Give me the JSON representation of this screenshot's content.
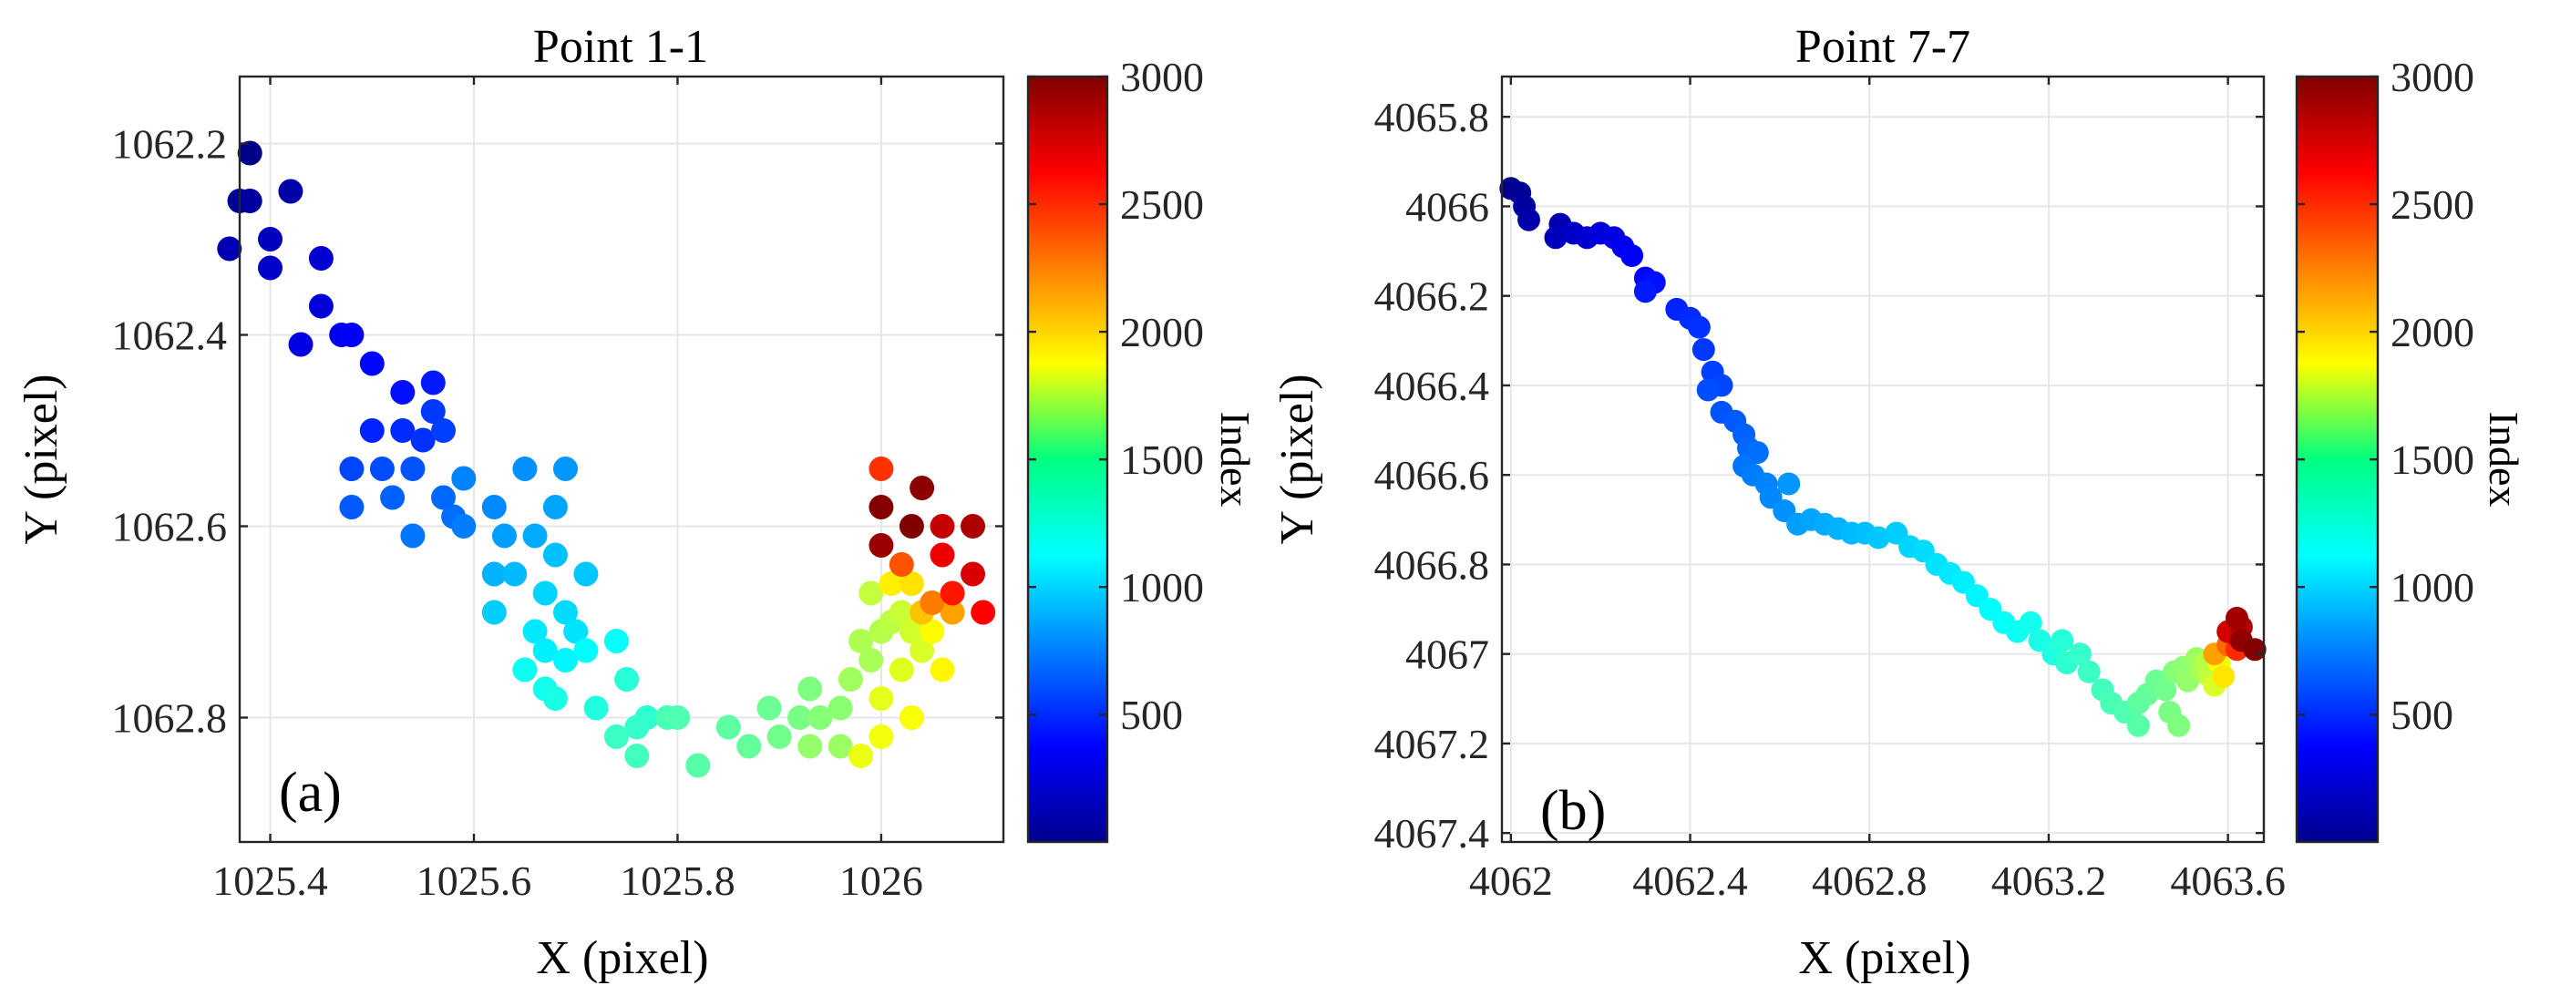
{
  "chart_data": [
    {
      "type": "scatter",
      "title": "Point 1-1",
      "panel_label": "(a)",
      "xlabel": "X (pixel)",
      "ylabel": "Y (pixel)",
      "xlim": [
        1025.37,
        1026.12
      ],
      "ylim": [
        1062.13,
        1062.93
      ],
      "y_reversed": true,
      "xticks": [
        1025.4,
        1025.6,
        1025.8,
        1026.0
      ],
      "xtick_labels": [
        "1025.4",
        "1025.6",
        "1025.8",
        "1026"
      ],
      "yticks": [
        1062.2,
        1062.4,
        1062.6,
        1062.8
      ],
      "ytick_labels": [
        "1062.2",
        "1062.4",
        "1062.6",
        "1062.8"
      ],
      "grid": true,
      "colorbar": {
        "label": "Index",
        "colormap": "jet",
        "range": [
          1,
          3000
        ],
        "ticks": [
          500,
          1000,
          1500,
          2000,
          2500,
          3000
        ],
        "tick_labels": [
          "500",
          "1000",
          "1500",
          "2000",
          "2500",
          "3000"
        ]
      },
      "points": [
        [
          1025.38,
          1062.21,
          30
        ],
        [
          1025.37,
          1062.26,
          60
        ],
        [
          1025.38,
          1062.26,
          90
        ],
        [
          1025.42,
          1062.25,
          120
        ],
        [
          1025.36,
          1062.31,
          150
        ],
        [
          1025.4,
          1062.3,
          180
        ],
        [
          1025.4,
          1062.33,
          210
        ],
        [
          1025.45,
          1062.32,
          240
        ],
        [
          1025.45,
          1062.37,
          270
        ],
        [
          1025.43,
          1062.41,
          300
        ],
        [
          1025.47,
          1062.4,
          330
        ],
        [
          1025.48,
          1062.4,
          360
        ],
        [
          1025.5,
          1062.43,
          390
        ],
        [
          1025.53,
          1062.46,
          420
        ],
        [
          1025.56,
          1062.45,
          450
        ],
        [
          1025.5,
          1062.5,
          480
        ],
        [
          1025.53,
          1062.5,
          500
        ],
        [
          1025.55,
          1062.51,
          520
        ],
        [
          1025.56,
          1062.48,
          540
        ],
        [
          1025.57,
          1062.5,
          560
        ],
        [
          1025.48,
          1062.54,
          580
        ],
        [
          1025.51,
          1062.54,
          600
        ],
        [
          1025.54,
          1062.54,
          620
        ],
        [
          1025.48,
          1062.58,
          640
        ],
        [
          1025.52,
          1062.57,
          660
        ],
        [
          1025.57,
          1062.57,
          680
        ],
        [
          1025.58,
          1062.59,
          700
        ],
        [
          1025.54,
          1062.61,
          720
        ],
        [
          1025.59,
          1062.6,
          740
        ],
        [
          1025.59,
          1062.55,
          760
        ],
        [
          1025.62,
          1062.58,
          780
        ],
        [
          1025.65,
          1062.54,
          800
        ],
        [
          1025.69,
          1062.54,
          820
        ],
        [
          1025.63,
          1062.61,
          840
        ],
        [
          1025.68,
          1062.58,
          860
        ],
        [
          1025.66,
          1062.61,
          880
        ],
        [
          1025.62,
          1062.65,
          900
        ],
        [
          1025.64,
          1062.65,
          920
        ],
        [
          1025.68,
          1062.63,
          940
        ],
        [
          1025.71,
          1062.65,
          960
        ],
        [
          1025.62,
          1062.69,
          980
        ],
        [
          1025.67,
          1062.67,
          1000
        ],
        [
          1025.69,
          1062.69,
          1020
        ],
        [
          1025.7,
          1062.71,
          1040
        ],
        [
          1025.66,
          1062.71,
          1060
        ],
        [
          1025.67,
          1062.73,
          1080
        ],
        [
          1025.69,
          1062.74,
          1100
        ],
        [
          1025.71,
          1062.73,
          1120
        ],
        [
          1025.74,
          1062.72,
          1140
        ],
        [
          1025.65,
          1062.75,
          1160
        ],
        [
          1025.67,
          1062.77,
          1180
        ],
        [
          1025.68,
          1062.78,
          1200
        ],
        [
          1025.72,
          1062.79,
          1220
        ],
        [
          1025.75,
          1062.76,
          1240
        ],
        [
          1025.77,
          1062.8,
          1260
        ],
        [
          1025.76,
          1062.81,
          1280
        ],
        [
          1025.74,
          1062.82,
          1300
        ],
        [
          1025.76,
          1062.84,
          1320
        ],
        [
          1025.79,
          1062.8,
          1340
        ],
        [
          1025.8,
          1062.8,
          1360
        ],
        [
          1025.82,
          1062.85,
          1380
        ],
        [
          1025.85,
          1062.81,
          1400
        ],
        [
          1025.87,
          1062.83,
          1420
        ],
        [
          1025.89,
          1062.79,
          1440
        ],
        [
          1025.9,
          1062.82,
          1460
        ],
        [
          1025.92,
          1062.8,
          1480
        ],
        [
          1025.93,
          1062.77,
          1500
        ],
        [
          1025.94,
          1062.8,
          1520
        ],
        [
          1025.96,
          1062.79,
          1540
        ],
        [
          1025.93,
          1062.83,
          1560
        ],
        [
          1025.96,
          1062.83,
          1580
        ],
        [
          1025.97,
          1062.76,
          1600
        ],
        [
          1025.99,
          1062.74,
          1620
        ],
        [
          1025.98,
          1062.72,
          1640
        ],
        [
          1026.0,
          1062.71,
          1660
        ],
        [
          1026.01,
          1062.7,
          1680
        ],
        [
          1025.99,
          1062.67,
          1700
        ],
        [
          1026.02,
          1062.69,
          1720
        ],
        [
          1026.03,
          1062.71,
          1740
        ],
        [
          1026.04,
          1062.73,
          1760
        ],
        [
          1026.02,
          1062.75,
          1780
        ],
        [
          1026.0,
          1062.78,
          1800
        ],
        [
          1025.98,
          1062.84,
          1820
        ],
        [
          1026.0,
          1062.82,
          1840
        ],
        [
          1026.03,
          1062.8,
          1860
        ],
        [
          1026.05,
          1062.71,
          1880
        ],
        [
          1026.06,
          1062.75,
          1900
        ],
        [
          1026.01,
          1062.66,
          1920
        ],
        [
          1026.03,
          1062.66,
          1960
        ],
        [
          1026.04,
          1062.69,
          2050
        ],
        [
          1026.07,
          1062.69,
          2150
        ],
        [
          1026.05,
          1062.68,
          2260
        ],
        [
          1026.02,
          1062.64,
          2380
        ],
        [
          1026.0,
          1062.54,
          2480
        ],
        [
          1026.07,
          1062.67,
          2560
        ],
        [
          1026.1,
          1062.69,
          2620
        ],
        [
          1026.06,
          1062.63,
          2680
        ],
        [
          1026.09,
          1062.65,
          2740
        ],
        [
          1026.06,
          1062.6,
          2800
        ],
        [
          1026.09,
          1062.6,
          2860
        ],
        [
          1026.0,
          1062.62,
          2920
        ],
        [
          1026.04,
          1062.56,
          2960
        ],
        [
          1026.0,
          1062.58,
          2980
        ],
        [
          1026.03,
          1062.6,
          2995
        ]
      ]
    },
    {
      "type": "scatter",
      "title": "Point 7-7",
      "panel_label": "(b)",
      "xlabel": "X (pixel)",
      "ylabel": "Y (pixel)",
      "xlim": [
        4061.98,
        4063.68
      ],
      "ylim": [
        4065.71,
        4067.42
      ],
      "y_reversed": true,
      "xticks": [
        4062.0,
        4062.4,
        4062.8,
        4063.2,
        4063.6
      ],
      "xtick_labels": [
        "4062",
        "4062.4",
        "4062.8",
        "4063.2",
        "4063.6"
      ],
      "yticks": [
        4065.8,
        4066.0,
        4066.2,
        4066.4,
        4066.6,
        4066.8,
        4067.0,
        4067.2,
        4067.4
      ],
      "ytick_labels": [
        "4065.8",
        "4066",
        "4066.2",
        "4066.4",
        "4066.6",
        "4066.8",
        "4067",
        "4067.2",
        "4067.4"
      ],
      "grid": true,
      "colorbar": {
        "label": "Index",
        "colormap": "jet",
        "range": [
          1,
          3000
        ],
        "ticks": [
          500,
          1000,
          1500,
          2000,
          2500,
          3000
        ],
        "tick_labels": [
          "500",
          "1000",
          "1500",
          "2000",
          "2500",
          "3000"
        ]
      },
      "points": [
        [
          4062.0,
          4065.96,
          30
        ],
        [
          4062.02,
          4065.97,
          60
        ],
        [
          4062.03,
          4066.0,
          90
        ],
        [
          4062.04,
          4066.03,
          120
        ],
        [
          4062.11,
          4066.04,
          150
        ],
        [
          4062.1,
          4066.07,
          180
        ],
        [
          4062.14,
          4066.06,
          210
        ],
        [
          4062.17,
          4066.07,
          240
        ],
        [
          4062.2,
          4066.06,
          270
        ],
        [
          4062.23,
          4066.07,
          300
        ],
        [
          4062.25,
          4066.09,
          330
        ],
        [
          4062.27,
          4066.11,
          360
        ],
        [
          4062.3,
          4066.16,
          390
        ],
        [
          4062.32,
          4066.17,
          420
        ],
        [
          4062.3,
          4066.19,
          450
        ],
        [
          4062.37,
          4066.23,
          480
        ],
        [
          4062.4,
          4066.25,
          500
        ],
        [
          4062.42,
          4066.27,
          520
        ],
        [
          4062.43,
          4066.32,
          540
        ],
        [
          4062.45,
          4066.37,
          560
        ],
        [
          4062.47,
          4066.4,
          580
        ],
        [
          4062.44,
          4066.41,
          600
        ],
        [
          4062.47,
          4066.46,
          620
        ],
        [
          4062.5,
          4066.48,
          640
        ],
        [
          4062.52,
          4066.51,
          660
        ],
        [
          4062.53,
          4066.54,
          680
        ],
        [
          4062.55,
          4066.55,
          700
        ],
        [
          4062.52,
          4066.58,
          720
        ],
        [
          4062.54,
          4066.6,
          740
        ],
        [
          4062.57,
          4066.62,
          760
        ],
        [
          4062.58,
          4066.65,
          780
        ],
        [
          4062.61,
          4066.68,
          800
        ],
        [
          4062.62,
          4066.62,
          820
        ],
        [
          4062.64,
          4066.71,
          840
        ],
        [
          4062.67,
          4066.7,
          860
        ],
        [
          4062.7,
          4066.71,
          880
        ],
        [
          4062.73,
          4066.72,
          900
        ],
        [
          4062.76,
          4066.73,
          920
        ],
        [
          4062.79,
          4066.73,
          940
        ],
        [
          4062.82,
          4066.74,
          960
        ],
        [
          4062.86,
          4066.73,
          980
        ],
        [
          4062.89,
          4066.76,
          1000
        ],
        [
          4062.92,
          4066.77,
          1020
        ],
        [
          4062.95,
          4066.8,
          1040
        ],
        [
          4062.98,
          4066.82,
          1060
        ],
        [
          4063.01,
          4066.84,
          1080
        ],
        [
          4063.04,
          4066.87,
          1100
        ],
        [
          4063.07,
          4066.9,
          1120
        ],
        [
          4063.1,
          4066.93,
          1140
        ],
        [
          4063.13,
          4066.95,
          1160
        ],
        [
          4063.16,
          4066.93,
          1180
        ],
        [
          4063.18,
          4066.97,
          1200
        ],
        [
          4063.21,
          4067.0,
          1220
        ],
        [
          4063.23,
          4066.97,
          1240
        ],
        [
          4063.24,
          4067.02,
          1260
        ],
        [
          4063.27,
          4067.0,
          1280
        ],
        [
          4063.29,
          4067.04,
          1300
        ],
        [
          4063.32,
          4067.08,
          1320
        ],
        [
          4063.34,
          4067.11,
          1340
        ],
        [
          4063.37,
          4067.13,
          1360
        ],
        [
          4063.4,
          4067.16,
          1380
        ],
        [
          4063.4,
          4067.11,
          1400
        ],
        [
          4063.42,
          4067.09,
          1420
        ],
        [
          4063.44,
          4067.06,
          1440
        ],
        [
          4063.46,
          4067.08,
          1460
        ],
        [
          4063.47,
          4067.13,
          1480
        ],
        [
          4063.49,
          4067.16,
          1500
        ],
        [
          4063.48,
          4067.04,
          1520
        ],
        [
          4063.5,
          4067.03,
          1540
        ],
        [
          4063.51,
          4067.06,
          1560
        ],
        [
          4063.53,
          4067.01,
          1580
        ],
        [
          4063.54,
          4067.04,
          1620
        ],
        [
          4063.55,
          4067.02,
          1660
        ],
        [
          4063.56,
          4067.05,
          1700
        ],
        [
          4063.57,
          4067.07,
          1760
        ],
        [
          4063.58,
          4067.02,
          1840
        ],
        [
          4063.59,
          4067.05,
          1950
        ],
        [
          4063.57,
          4067.0,
          2150
        ],
        [
          4063.6,
          4066.98,
          2320
        ],
        [
          4063.62,
          4066.99,
          2500
        ],
        [
          4063.62,
          4066.96,
          2650
        ],
        [
          4063.6,
          4066.95,
          2760
        ],
        [
          4063.63,
          4066.94,
          2840
        ],
        [
          4063.62,
          4066.92,
          2900
        ],
        [
          4063.63,
          4066.97,
          2950
        ],
        [
          4063.66,
          4066.99,
          2990
        ]
      ]
    }
  ]
}
